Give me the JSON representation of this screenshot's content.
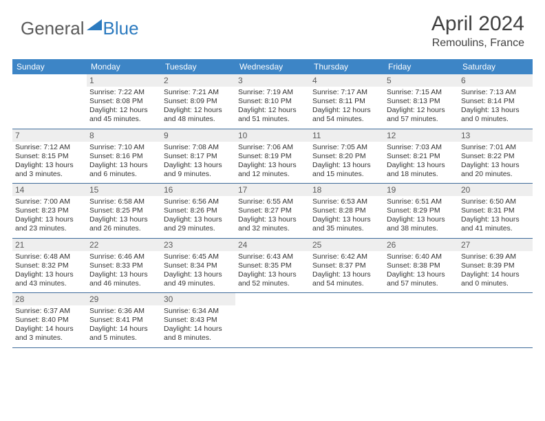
{
  "logo": {
    "general": "General",
    "blue": "Blue"
  },
  "title": "April 2024",
  "location": "Remoulins, France",
  "colors": {
    "header_bg": "#3d85c6",
    "header_text": "#ffffff",
    "daynum_bg": "#eeeeee",
    "row_border": "#3d6a99",
    "logo_gray": "#5a5a5a",
    "logo_blue": "#2b7abf",
    "body_text": "#333333"
  },
  "days_of_week": [
    "Sunday",
    "Monday",
    "Tuesday",
    "Wednesday",
    "Thursday",
    "Friday",
    "Saturday"
  ],
  "weeks": [
    [
      {
        "num": "",
        "lines": []
      },
      {
        "num": "1",
        "lines": [
          "Sunrise: 7:22 AM",
          "Sunset: 8:08 PM",
          "Daylight: 12 hours",
          "and 45 minutes."
        ]
      },
      {
        "num": "2",
        "lines": [
          "Sunrise: 7:21 AM",
          "Sunset: 8:09 PM",
          "Daylight: 12 hours",
          "and 48 minutes."
        ]
      },
      {
        "num": "3",
        "lines": [
          "Sunrise: 7:19 AM",
          "Sunset: 8:10 PM",
          "Daylight: 12 hours",
          "and 51 minutes."
        ]
      },
      {
        "num": "4",
        "lines": [
          "Sunrise: 7:17 AM",
          "Sunset: 8:11 PM",
          "Daylight: 12 hours",
          "and 54 minutes."
        ]
      },
      {
        "num": "5",
        "lines": [
          "Sunrise: 7:15 AM",
          "Sunset: 8:13 PM",
          "Daylight: 12 hours",
          "and 57 minutes."
        ]
      },
      {
        "num": "6",
        "lines": [
          "Sunrise: 7:13 AM",
          "Sunset: 8:14 PM",
          "Daylight: 13 hours",
          "and 0 minutes."
        ]
      }
    ],
    [
      {
        "num": "7",
        "lines": [
          "Sunrise: 7:12 AM",
          "Sunset: 8:15 PM",
          "Daylight: 13 hours",
          "and 3 minutes."
        ]
      },
      {
        "num": "8",
        "lines": [
          "Sunrise: 7:10 AM",
          "Sunset: 8:16 PM",
          "Daylight: 13 hours",
          "and 6 minutes."
        ]
      },
      {
        "num": "9",
        "lines": [
          "Sunrise: 7:08 AM",
          "Sunset: 8:17 PM",
          "Daylight: 13 hours",
          "and 9 minutes."
        ]
      },
      {
        "num": "10",
        "lines": [
          "Sunrise: 7:06 AM",
          "Sunset: 8:19 PM",
          "Daylight: 13 hours",
          "and 12 minutes."
        ]
      },
      {
        "num": "11",
        "lines": [
          "Sunrise: 7:05 AM",
          "Sunset: 8:20 PM",
          "Daylight: 13 hours",
          "and 15 minutes."
        ]
      },
      {
        "num": "12",
        "lines": [
          "Sunrise: 7:03 AM",
          "Sunset: 8:21 PM",
          "Daylight: 13 hours",
          "and 18 minutes."
        ]
      },
      {
        "num": "13",
        "lines": [
          "Sunrise: 7:01 AM",
          "Sunset: 8:22 PM",
          "Daylight: 13 hours",
          "and 20 minutes."
        ]
      }
    ],
    [
      {
        "num": "14",
        "lines": [
          "Sunrise: 7:00 AM",
          "Sunset: 8:23 PM",
          "Daylight: 13 hours",
          "and 23 minutes."
        ]
      },
      {
        "num": "15",
        "lines": [
          "Sunrise: 6:58 AM",
          "Sunset: 8:25 PM",
          "Daylight: 13 hours",
          "and 26 minutes."
        ]
      },
      {
        "num": "16",
        "lines": [
          "Sunrise: 6:56 AM",
          "Sunset: 8:26 PM",
          "Daylight: 13 hours",
          "and 29 minutes."
        ]
      },
      {
        "num": "17",
        "lines": [
          "Sunrise: 6:55 AM",
          "Sunset: 8:27 PM",
          "Daylight: 13 hours",
          "and 32 minutes."
        ]
      },
      {
        "num": "18",
        "lines": [
          "Sunrise: 6:53 AM",
          "Sunset: 8:28 PM",
          "Daylight: 13 hours",
          "and 35 minutes."
        ]
      },
      {
        "num": "19",
        "lines": [
          "Sunrise: 6:51 AM",
          "Sunset: 8:29 PM",
          "Daylight: 13 hours",
          "and 38 minutes."
        ]
      },
      {
        "num": "20",
        "lines": [
          "Sunrise: 6:50 AM",
          "Sunset: 8:31 PM",
          "Daylight: 13 hours",
          "and 41 minutes."
        ]
      }
    ],
    [
      {
        "num": "21",
        "lines": [
          "Sunrise: 6:48 AM",
          "Sunset: 8:32 PM",
          "Daylight: 13 hours",
          "and 43 minutes."
        ]
      },
      {
        "num": "22",
        "lines": [
          "Sunrise: 6:46 AM",
          "Sunset: 8:33 PM",
          "Daylight: 13 hours",
          "and 46 minutes."
        ]
      },
      {
        "num": "23",
        "lines": [
          "Sunrise: 6:45 AM",
          "Sunset: 8:34 PM",
          "Daylight: 13 hours",
          "and 49 minutes."
        ]
      },
      {
        "num": "24",
        "lines": [
          "Sunrise: 6:43 AM",
          "Sunset: 8:35 PM",
          "Daylight: 13 hours",
          "and 52 minutes."
        ]
      },
      {
        "num": "25",
        "lines": [
          "Sunrise: 6:42 AM",
          "Sunset: 8:37 PM",
          "Daylight: 13 hours",
          "and 54 minutes."
        ]
      },
      {
        "num": "26",
        "lines": [
          "Sunrise: 6:40 AM",
          "Sunset: 8:38 PM",
          "Daylight: 13 hours",
          "and 57 minutes."
        ]
      },
      {
        "num": "27",
        "lines": [
          "Sunrise: 6:39 AM",
          "Sunset: 8:39 PM",
          "Daylight: 14 hours",
          "and 0 minutes."
        ]
      }
    ],
    [
      {
        "num": "28",
        "lines": [
          "Sunrise: 6:37 AM",
          "Sunset: 8:40 PM",
          "Daylight: 14 hours",
          "and 3 minutes."
        ]
      },
      {
        "num": "29",
        "lines": [
          "Sunrise: 6:36 AM",
          "Sunset: 8:41 PM",
          "Daylight: 14 hours",
          "and 5 minutes."
        ]
      },
      {
        "num": "30",
        "lines": [
          "Sunrise: 6:34 AM",
          "Sunset: 8:43 PM",
          "Daylight: 14 hours",
          "and 8 minutes."
        ]
      },
      {
        "num": "",
        "lines": []
      },
      {
        "num": "",
        "lines": []
      },
      {
        "num": "",
        "lines": []
      },
      {
        "num": "",
        "lines": []
      }
    ]
  ]
}
